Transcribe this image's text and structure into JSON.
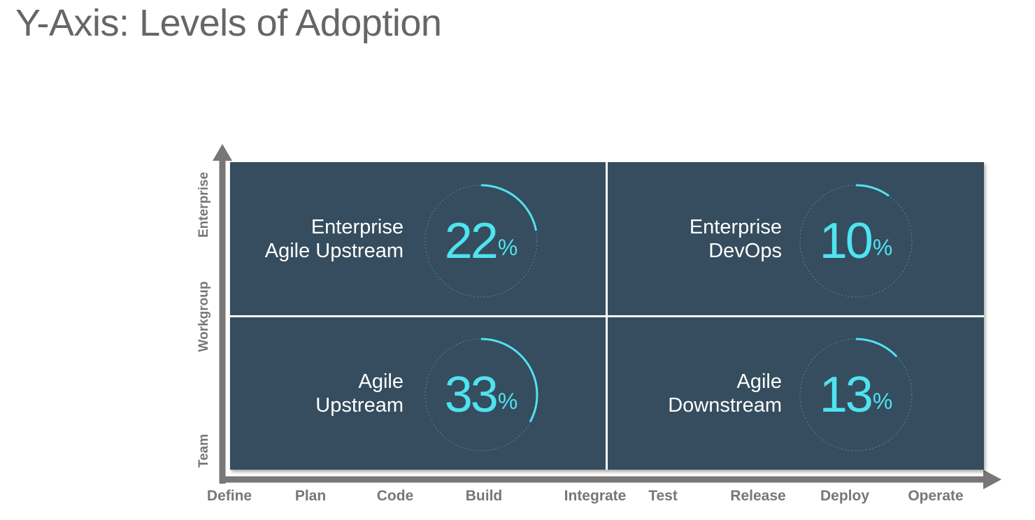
{
  "title": "Y-Axis: Levels of Adoption",
  "colors": {
    "quadrant_fill": "#354d5e",
    "accent": "#4fe3f0",
    "axis": "#777777",
    "title": "#666666"
  },
  "y_axis": {
    "labels": [
      "Enterprise",
      "Workgroup",
      "Team"
    ]
  },
  "x_axis": {
    "labels": [
      "Define",
      "Plan",
      "Code",
      "Build",
      "Integrate",
      "Test",
      "Release",
      "Deploy",
      "Operate"
    ]
  },
  "quadrants": [
    {
      "line1": "Enterprise",
      "line2": "Agile Upstream",
      "value": "22",
      "unit": "%",
      "fraction": 0.22
    },
    {
      "line1": "Enterprise",
      "line2": "DevOps",
      "value": "10",
      "unit": "%",
      "fraction": 0.1
    },
    {
      "line1": "Agile",
      "line2": "Upstream",
      "value": "33",
      "unit": "%",
      "fraction": 0.33
    },
    {
      "line1": "Agile",
      "line2": "Downstream",
      "value": "13",
      "unit": "%",
      "fraction": 0.13
    }
  ]
}
